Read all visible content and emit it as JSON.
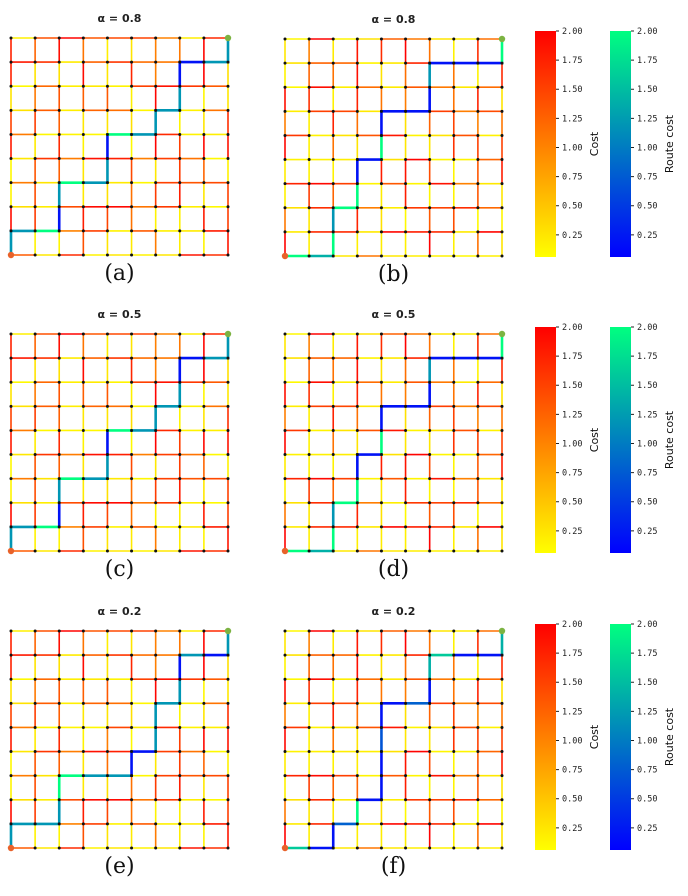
{
  "chart_data": {
    "type": "network-grid",
    "grid_nodes": [
      10,
      10
    ],
    "panels": [
      {
        "label": "(a)",
        "title": "α = 0.8",
        "cost_map": "A",
        "route": [
          [
            0,
            0
          ],
          [
            0,
            1
          ],
          [
            1,
            1
          ],
          [
            2,
            1
          ],
          [
            2,
            2
          ],
          [
            2,
            3
          ],
          [
            3,
            3
          ],
          [
            4,
            3
          ],
          [
            4,
            4
          ],
          [
            4,
            5
          ],
          [
            5,
            5
          ],
          [
            6,
            5
          ],
          [
            6,
            6
          ],
          [
            7,
            6
          ],
          [
            7,
            7
          ],
          [
            7,
            8
          ],
          [
            8,
            8
          ],
          [
            9,
            8
          ],
          [
            9,
            9
          ]
        ],
        "route_costs": [
          1.2,
          1.2,
          2.0,
          0.2,
          1.2,
          2.0,
          1.2,
          1.2,
          0.2,
          2.0,
          1.2,
          1.2,
          1.2,
          1.2,
          0.2,
          0.2,
          1.2,
          1.2
        ]
      },
      {
        "label": "(b)",
        "title": "α = 0.8",
        "cost_map": "B",
        "route": [
          [
            0,
            0
          ],
          [
            1,
            0
          ],
          [
            2,
            0
          ],
          [
            2,
            1
          ],
          [
            2,
            2
          ],
          [
            3,
            2
          ],
          [
            3,
            3
          ],
          [
            3,
            4
          ],
          [
            4,
            4
          ],
          [
            4,
            5
          ],
          [
            4,
            6
          ],
          [
            5,
            6
          ],
          [
            6,
            6
          ],
          [
            6,
            7
          ],
          [
            6,
            8
          ],
          [
            7,
            8
          ],
          [
            8,
            8
          ],
          [
            9,
            8
          ],
          [
            9,
            9
          ]
        ],
        "route_costs": [
          2.0,
          1.4,
          2.0,
          1.2,
          2.0,
          2.0,
          0.2,
          0.2,
          2.0,
          0.2,
          0.2,
          0.2,
          0.2,
          1.2,
          0.2,
          0.2,
          0.2,
          2.0
        ]
      },
      {
        "label": "(c)",
        "title": "α = 0.5",
        "cost_map": "A",
        "route": [
          [
            0,
            0
          ],
          [
            0,
            1
          ],
          [
            1,
            1
          ],
          [
            2,
            1
          ],
          [
            2,
            2
          ],
          [
            2,
            3
          ],
          [
            3,
            3
          ],
          [
            4,
            3
          ],
          [
            4,
            4
          ],
          [
            4,
            5
          ],
          [
            5,
            5
          ],
          [
            6,
            5
          ],
          [
            6,
            6
          ],
          [
            7,
            6
          ],
          [
            7,
            7
          ],
          [
            7,
            8
          ],
          [
            8,
            8
          ],
          [
            9,
            8
          ],
          [
            9,
            9
          ]
        ],
        "route_costs": [
          1.2,
          1.2,
          2.0,
          0.2,
          1.2,
          2.0,
          1.2,
          1.2,
          0.2,
          2.0,
          1.2,
          1.2,
          1.2,
          1.2,
          0.2,
          0.2,
          1.2,
          1.2
        ]
      },
      {
        "label": "(d)",
        "title": "α = 0.5",
        "cost_map": "B",
        "route": [
          [
            0,
            0
          ],
          [
            1,
            0
          ],
          [
            2,
            0
          ],
          [
            2,
            1
          ],
          [
            2,
            2
          ],
          [
            3,
            2
          ],
          [
            3,
            3
          ],
          [
            3,
            4
          ],
          [
            4,
            4
          ],
          [
            4,
            5
          ],
          [
            4,
            6
          ],
          [
            5,
            6
          ],
          [
            6,
            6
          ],
          [
            6,
            7
          ],
          [
            6,
            8
          ],
          [
            7,
            8
          ],
          [
            8,
            8
          ],
          [
            9,
            8
          ],
          [
            9,
            9
          ]
        ],
        "route_costs": [
          2.0,
          1.4,
          2.0,
          1.2,
          2.0,
          2.0,
          0.2,
          0.2,
          2.0,
          0.2,
          0.2,
          0.2,
          0.2,
          1.2,
          0.2,
          0.2,
          0.2,
          2.0
        ]
      },
      {
        "label": "(e)",
        "title": "α = 0.2",
        "cost_map": "A",
        "route": [
          [
            0,
            0
          ],
          [
            0,
            1
          ],
          [
            1,
            1
          ],
          [
            2,
            1
          ],
          [
            2,
            2
          ],
          [
            2,
            3
          ],
          [
            3,
            3
          ],
          [
            4,
            3
          ],
          [
            5,
            3
          ],
          [
            5,
            4
          ],
          [
            6,
            4
          ],
          [
            6,
            5
          ],
          [
            6,
            6
          ],
          [
            7,
            6
          ],
          [
            7,
            7
          ],
          [
            7,
            8
          ],
          [
            8,
            8
          ],
          [
            9,
            8
          ],
          [
            9,
            9
          ]
        ],
        "route_costs": [
          1.2,
          1.2,
          1.2,
          1.2,
          2.0,
          2.0,
          1.2,
          1.2,
          0.2,
          0.2,
          1.2,
          1.2,
          1.2,
          1.2,
          0.2,
          1.2,
          0.2,
          1.2
        ]
      },
      {
        "label": "(f)",
        "title": "α = 0.2",
        "cost_map": "B",
        "route": [
          [
            0,
            0
          ],
          [
            1,
            0
          ],
          [
            2,
            0
          ],
          [
            2,
            1
          ],
          [
            3,
            1
          ],
          [
            3,
            2
          ],
          [
            4,
            2
          ],
          [
            4,
            3
          ],
          [
            4,
            4
          ],
          [
            4,
            5
          ],
          [
            4,
            6
          ],
          [
            5,
            6
          ],
          [
            6,
            6
          ],
          [
            6,
            7
          ],
          [
            6,
            8
          ],
          [
            7,
            8
          ],
          [
            8,
            8
          ],
          [
            9,
            8
          ],
          [
            9,
            9
          ]
        ],
        "route_costs": [
          1.6,
          0.2,
          0.2,
          0.8,
          2.0,
          0.2,
          0.2,
          0.2,
          0.7,
          0.2,
          0.2,
          0.8,
          0.2,
          1.4,
          1.6,
          0.2,
          0.2,
          1.4
        ]
      }
    ],
    "colorbars": [
      {
        "label": "Cost",
        "range": [
          0.06,
          2.0
        ],
        "colors": [
          "#ffff00",
          "#ff0000"
        ],
        "ticks": [
          "0.25",
          "0.50",
          "0.75",
          "1.00",
          "1.25",
          "1.50",
          "1.75",
          "2.00"
        ]
      },
      {
        "label": "Route cost",
        "range": [
          0.06,
          2.0
        ],
        "colors": [
          "#0000ff",
          "#00ff80"
        ],
        "ticks": [
          "0.25",
          "0.50",
          "0.75",
          "1.00",
          "1.25",
          "1.50",
          "1.75",
          "2.00"
        ]
      }
    ],
    "origin_node_color": "#e8622a",
    "destination_node_color": "#7cb342"
  }
}
